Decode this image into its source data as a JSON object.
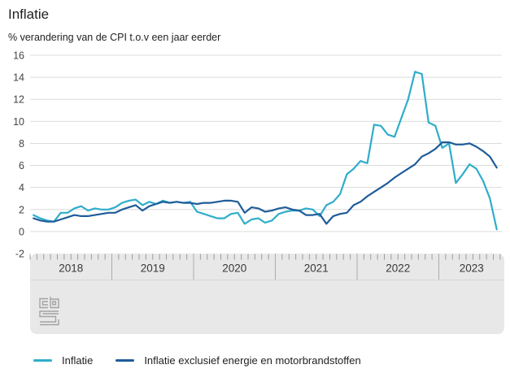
{
  "header": {
    "title": "Inflatie",
    "subtitle": "% verandering van de CPI t.o.v een jaar eerder"
  },
  "legend": {
    "items": [
      {
        "label": "Inflatie",
        "color": "#2fadca"
      },
      {
        "label": "Inflatie exclusief energie en motorbrandstoffen",
        "color": "#1e5c99"
      }
    ]
  },
  "logo": {
    "name": "cbs-logo"
  },
  "colors": {
    "grid": "#dcdcdc",
    "axis_panel": "#e8e8e8",
    "tick": "#9c9c9c",
    "divider": "#ababab",
    "axis_rule": "#d6d6d6",
    "axis_text": "#3c3c3c"
  },
  "chart_data": {
    "type": "line",
    "title": "Inflatie",
    "subtitle": "% verandering van de CPI t.o.v een jaar eerder",
    "x_unit": "month",
    "x_start": "2018-01",
    "x_end": "2023-09",
    "years": [
      "2018",
      "2019",
      "2020",
      "2021",
      "2022",
      "2023"
    ],
    "months_per_year": 12,
    "ylim": [
      -2,
      16
    ],
    "yticks": [
      16,
      14,
      12,
      10,
      8,
      6,
      4,
      2,
      0,
      -2
    ],
    "grid": true,
    "legend_position": "bottom",
    "series": [
      {
        "name": "Inflatie",
        "color": "#2fadca",
        "values": [
          1.5,
          1.2,
          1.0,
          0.9,
          1.7,
          1.7,
          2.1,
          2.3,
          1.9,
          2.1,
          2.0,
          2.0,
          2.2,
          2.6,
          2.8,
          2.9,
          2.4,
          2.7,
          2.5,
          2.8,
          2.6,
          2.7,
          2.6,
          2.7,
          1.8,
          1.6,
          1.4,
          1.2,
          1.2,
          1.6,
          1.7,
          0.7,
          1.1,
          1.2,
          0.8,
          1.0,
          1.6,
          1.8,
          1.9,
          1.9,
          2.1,
          2.0,
          1.4,
          2.4,
          2.7,
          3.4,
          5.2,
          5.7,
          6.4,
          6.2,
          9.7,
          9.6,
          8.8,
          8.6,
          10.3,
          12.0,
          14.5,
          14.3,
          9.9,
          9.6,
          7.6,
          8.0,
          4.4,
          5.2,
          6.1,
          5.7,
          4.6,
          3.0,
          0.2
        ]
      },
      {
        "name": "Inflatie exclusief energie en motorbrandstoffen",
        "color": "#1e5c99",
        "values": [
          1.2,
          1.0,
          0.9,
          0.9,
          1.1,
          1.3,
          1.5,
          1.4,
          1.4,
          1.5,
          1.6,
          1.7,
          1.7,
          2.0,
          2.2,
          2.4,
          1.9,
          2.3,
          2.5,
          2.7,
          2.6,
          2.7,
          2.6,
          2.6,
          2.5,
          2.6,
          2.6,
          2.7,
          2.8,
          2.8,
          2.7,
          1.7,
          2.2,
          2.1,
          1.8,
          1.9,
          2.1,
          2.2,
          2.0,
          1.9,
          1.5,
          1.5,
          1.6,
          0.7,
          1.4,
          1.6,
          1.7,
          2.4,
          2.7,
          3.2,
          3.6,
          4.0,
          4.4,
          4.9,
          5.3,
          5.7,
          6.1,
          6.8,
          7.1,
          7.5,
          8.1,
          8.1,
          7.9,
          7.9,
          8.0,
          7.7,
          7.3,
          6.8,
          5.8
        ]
      }
    ]
  }
}
